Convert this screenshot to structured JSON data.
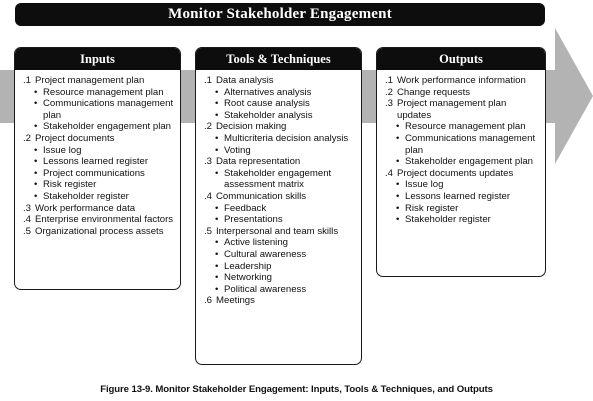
{
  "title": "Monitor Stakeholder Engagement",
  "columns": [
    {
      "heading": "Inputs",
      "items": [
        {
          "num": ".1",
          "text": "Project management plan",
          "subs": [
            "Resource management plan",
            "Communications management plan",
            "Stakeholder engagement plan"
          ]
        },
        {
          "num": ".2",
          "text": "Project documents",
          "subs": [
            "Issue log",
            "Lessons learned register",
            "Project communications",
            "Risk register",
            "Stakeholder register"
          ]
        },
        {
          "num": ".3",
          "text": "Work performance data",
          "subs": []
        },
        {
          "num": ".4",
          "text": "Enterprise environmental factors",
          "subs": []
        },
        {
          "num": ".5",
          "text": "Organizational process assets",
          "subs": []
        }
      ]
    },
    {
      "heading": "Tools & Techniques",
      "items": [
        {
          "num": ".1",
          "text": "Data analysis",
          "subs": [
            "Alternatives analysis",
            "Root cause analysis",
            "Stakeholder analysis"
          ]
        },
        {
          "num": ".2",
          "text": "Decision making",
          "subs": [
            "Multicriteria decision analysis",
            "Voting"
          ]
        },
        {
          "num": ".3",
          "text": "Data representation",
          "subs": [
            "Stakeholder engagement assessment matrix"
          ]
        },
        {
          "num": ".4",
          "text": "Communication skills",
          "subs": [
            "Feedback",
            "Presentations"
          ]
        },
        {
          "num": ".5",
          "text": "Interpersonal and team skills",
          "subs": [
            "Active listening",
            "Cultural awareness",
            "Leadership",
            "Networking",
            "Political awareness"
          ]
        },
        {
          "num": ".6",
          "text": "Meetings",
          "subs": []
        }
      ]
    },
    {
      "heading": "Outputs",
      "items": [
        {
          "num": ".1",
          "text": "Work performance information",
          "subs": []
        },
        {
          "num": ".2",
          "text": "Change requests",
          "subs": []
        },
        {
          "num": ".3",
          "text": "Project management plan updates",
          "subs": [
            "Resource management plan",
            "Communications management plan",
            "Stakeholder engagement plan"
          ]
        },
        {
          "num": ".4",
          "text": "Project documents updates",
          "subs": [
            "Issue log",
            "Lessons learned register",
            "Risk register",
            "Stakeholder register"
          ]
        }
      ]
    }
  ],
  "caption": "Figure 13-9. Monitor Stakeholder Engagement: Inputs, Tools & Techniques, and Outputs",
  "colors": {
    "dark": "#0d0d0d",
    "arrow": "#b3b3b3"
  }
}
